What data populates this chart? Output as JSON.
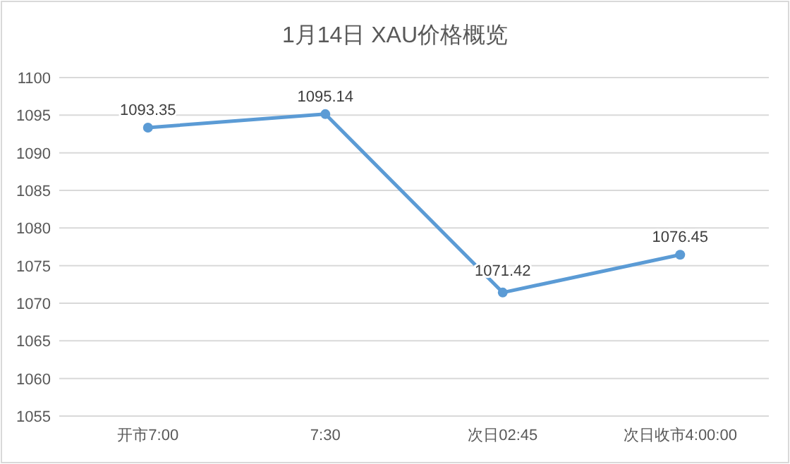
{
  "chart_data": {
    "type": "line",
    "title": "1月14日 XAU价格概览",
    "categories": [
      "开市7:00",
      "7:30",
      "次日02:45",
      "次日收市4:00:00"
    ],
    "series": [
      {
        "color": "#5b9bd5",
        "values": [
          1093.35,
          1095.14,
          1071.42,
          1076.45
        ]
      }
    ],
    "ylim": [
      1055,
      1100
    ],
    "yticks": [
      1055,
      1060,
      1065,
      1070,
      1075,
      1080,
      1085,
      1090,
      1095,
      1100
    ],
    "grid": "y",
    "marker": "circle",
    "data_labels": true
  }
}
